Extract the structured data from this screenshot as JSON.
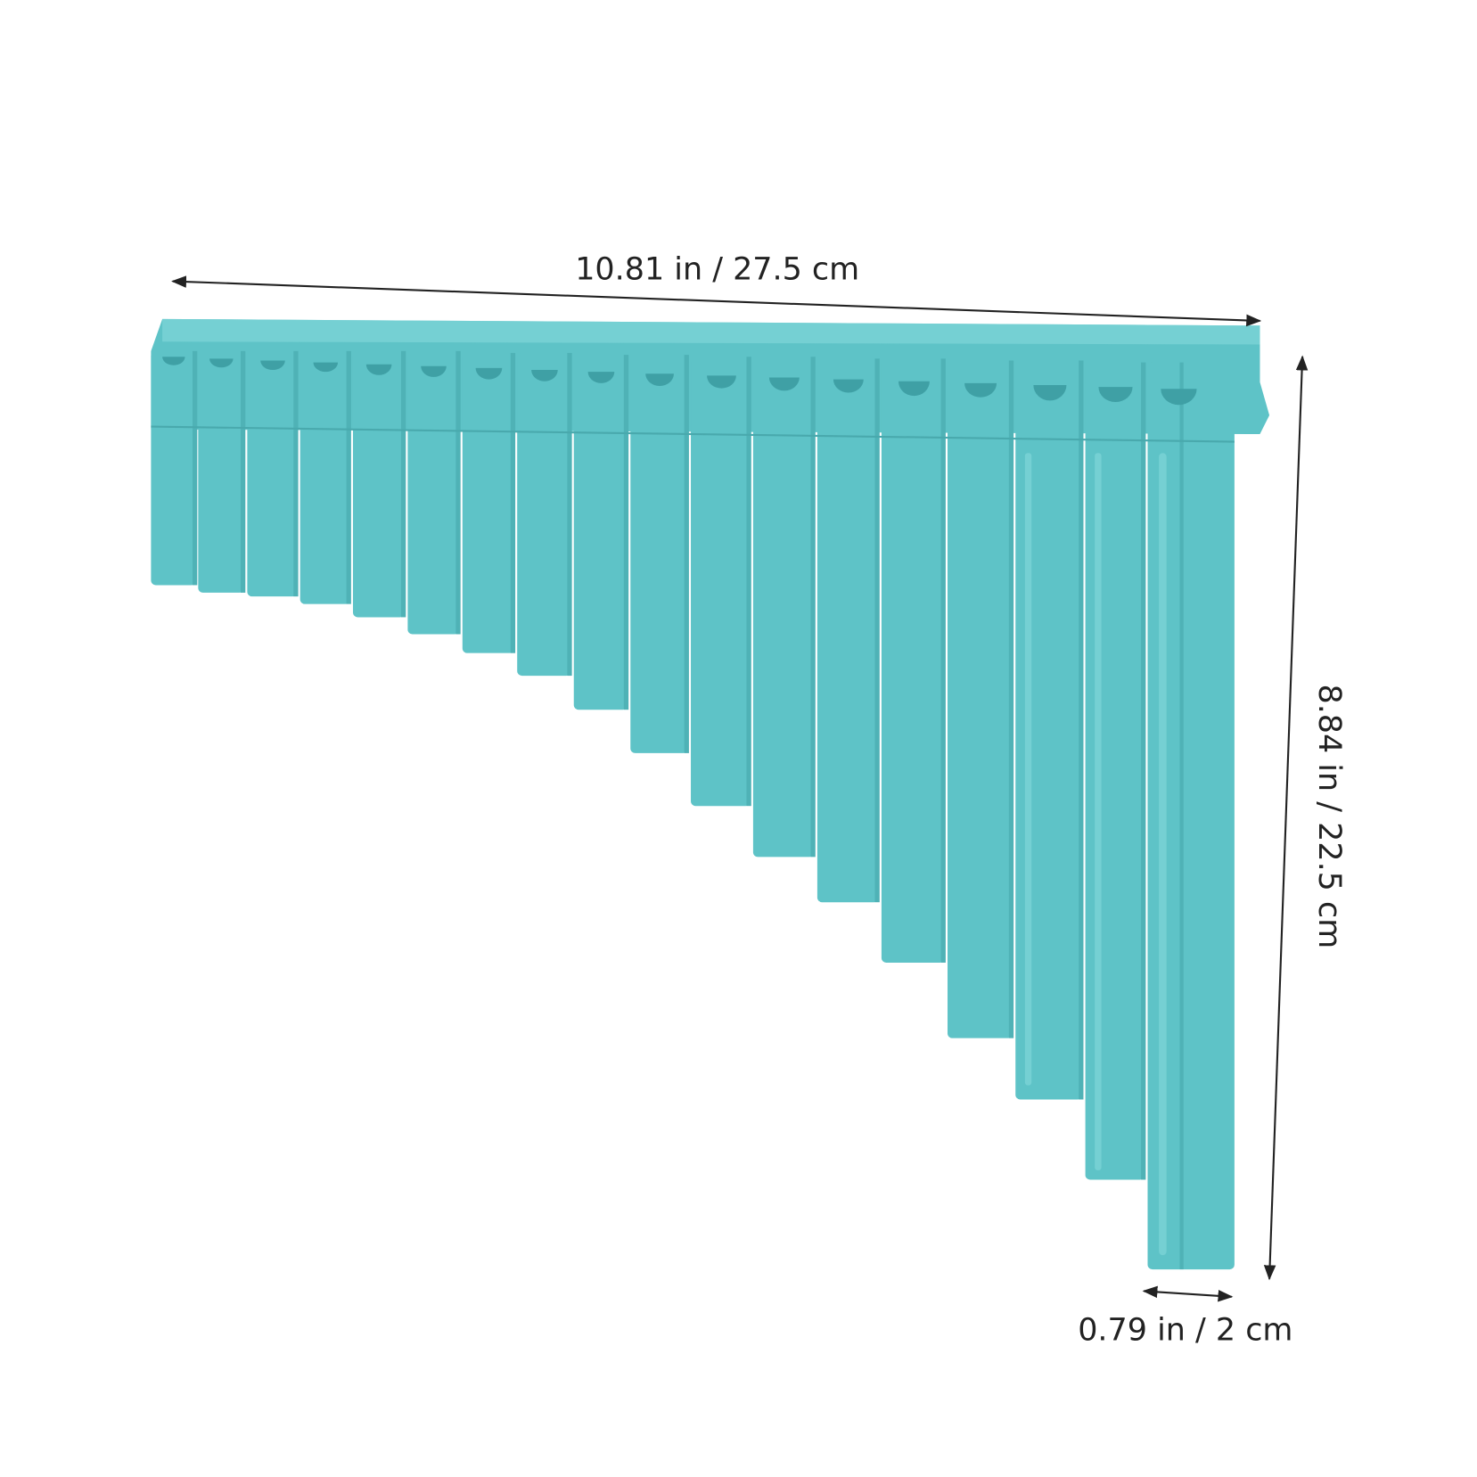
{
  "dimensions": {
    "width": "10.81 in / 27.5 cm",
    "height": "8.84 in / 22.5 cm",
    "diameter": "0.79 in / 2 cm"
  }
}
